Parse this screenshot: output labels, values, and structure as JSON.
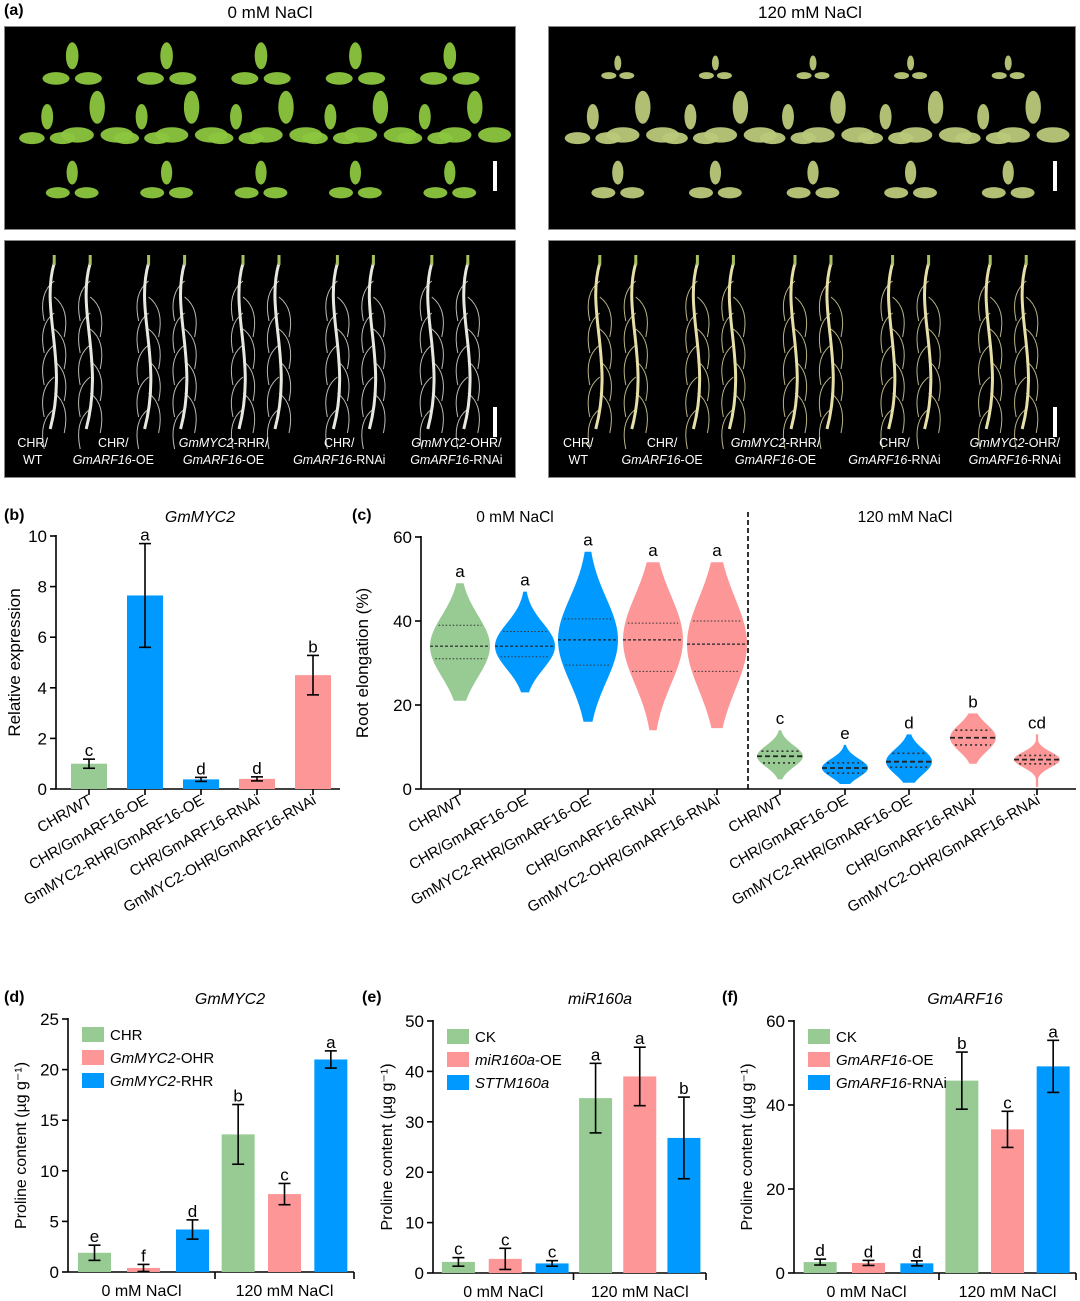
{
  "panel_a": {
    "label": "(a)",
    "conditions": [
      "0 mM NaCl",
      "120 mM NaCl"
    ],
    "genotypes": [
      {
        "line1": "CHR/",
        "line2_it": "",
        "line2": "WT"
      },
      {
        "line1": "CHR/",
        "line2_it": "GmARF16",
        "line2": "-OE"
      },
      {
        "line1_it": "GmMYC2",
        "line1": "-RHR/",
        "line2_it": "GmARF16",
        "line2": "-OE"
      },
      {
        "line1": "CHR/",
        "line2_it": "GmARF16",
        "line2": "-RNAi"
      },
      {
        "line1_it": "GmMYC2",
        "line1": "-OHR/",
        "line2_it": "GmARF16",
        "line2": "-RNAi"
      }
    ],
    "rows": [
      "leaves",
      "roots"
    ]
  },
  "colors": {
    "green": "#97cb93",
    "blue": "#0099ff",
    "pink": "#fd9696"
  },
  "chart_data": [
    {
      "id": "b",
      "type": "bar",
      "label": "(b)",
      "title": "GmMYC2",
      "ylabel": "Relative expression",
      "ylim": [
        0,
        10
      ],
      "yticks": [
        0,
        2,
        4,
        6,
        8,
        10
      ],
      "categories": [
        "CHR/WT",
        "CHR/GmARF16-OE",
        "GmMYC2-RHR/GmARF16-OE",
        "CHR/GmARF16-RNAi",
        "GmMYC2-OHR/GmARF16-RNAi"
      ],
      "values": [
        1.0,
        7.65,
        0.38,
        0.4,
        4.5
      ],
      "errors": [
        0.18,
        2.05,
        0.08,
        0.08,
        0.78
      ],
      "letters": [
        "c",
        "a",
        "d",
        "d",
        "b"
      ],
      "bar_colors": [
        "green",
        "blue",
        "blue",
        "pink",
        "pink"
      ]
    },
    {
      "id": "c",
      "type": "violin",
      "label": "(c)",
      "ylabel": "Root elongation (%)",
      "ylim": [
        0,
        60
      ],
      "yticks": [
        0,
        20,
        40,
        60
      ],
      "groups": [
        "0 mM NaCl",
        "120 mM NaCl"
      ],
      "categories": [
        "CHR/WT",
        "CHR/GmARF16-OE",
        "GmMYC2-RHR/GmARF16-OE",
        "CHR/GmARF16-RNAi",
        "GmMYC2-OHR/GmARF16-RNAi"
      ],
      "series": [
        {
          "name": "0 mM NaCl",
          "median": [
            34,
            34,
            35.5,
            35.5,
            34.5
          ],
          "q1": [
            31,
            31.5,
            29.5,
            28,
            28
          ],
          "q3": [
            39,
            37.5,
            40.5,
            39.5,
            40
          ],
          "min": [
            21,
            23,
            16,
            14,
            14.5
          ],
          "max": [
            49,
            47,
            56.5,
            54,
            54
          ],
          "letters": [
            "a",
            "a",
            "a",
            "a",
            "a"
          ]
        },
        {
          "name": "120 mM NaCl",
          "median": [
            7.8,
            5.0,
            6.5,
            12.2,
            7.0
          ],
          "q1": [
            6.2,
            3.8,
            5.2,
            10.5,
            6.0
          ],
          "q3": [
            9.0,
            6.2,
            8.5,
            14.0,
            8.0
          ],
          "min": [
            2.3,
            1.2,
            1.5,
            6.0,
            0.5
          ],
          "max": [
            14,
            10.5,
            13,
            18,
            13
          ],
          "letters": [
            "c",
            "e",
            "d",
            "b",
            "cd"
          ]
        }
      ],
      "violin_colors": [
        "green",
        "blue",
        "blue",
        "pink",
        "pink"
      ]
    },
    {
      "id": "d",
      "type": "bar",
      "label": "(d)",
      "title": "GmMYC2",
      "ylabel": "Proline content (µg g⁻¹)",
      "ylim": [
        0,
        25
      ],
      "yticks": [
        0,
        5,
        10,
        15,
        20,
        25
      ],
      "categories": [
        "0 mM NaCl",
        "120 mM NaCl"
      ],
      "series": [
        {
          "name": "CHR",
          "name_it": "",
          "name_rest": "CHR",
          "color": "green",
          "values": [
            1.9,
            13.6
          ],
          "errors": [
            0.75,
            2.95
          ],
          "letters": [
            "e",
            "b"
          ]
        },
        {
          "name": "GmMYC2-OHR",
          "name_it": "GmMYC2",
          "name_rest": "-OHR",
          "color": "pink",
          "values": [
            0.4,
            7.7
          ],
          "errors": [
            0.35,
            1.05
          ],
          "letters": [
            "f",
            "c"
          ]
        },
        {
          "name": "GmMYC2-RHR",
          "name_it": "GmMYC2",
          "name_rest": "-RHR",
          "color": "blue",
          "values": [
            4.2,
            21.0
          ],
          "errors": [
            0.95,
            0.85
          ],
          "letters": [
            "d",
            "a"
          ]
        }
      ]
    },
    {
      "id": "e",
      "type": "bar",
      "label": "(e)",
      "title": "miR160a",
      "ylabel": "Proline content (µg g⁻¹)",
      "ylim": [
        0,
        50
      ],
      "yticks": [
        0,
        10,
        20,
        30,
        40,
        50
      ],
      "categories": [
        "0 mM NaCl",
        "120 mM NaCl"
      ],
      "series": [
        {
          "name": "CK",
          "name_it": "",
          "name_rest": "CK",
          "color": "green",
          "values": [
            2.2,
            34.7
          ],
          "errors": [
            0.85,
            6.9
          ],
          "letters": [
            "c",
            "a"
          ]
        },
        {
          "name": "miR160a-OE",
          "name_it": "miR160a",
          "name_rest": "-OE",
          "color": "pink",
          "values": [
            2.8,
            39.0
          ],
          "errors": [
            2.1,
            5.8
          ],
          "letters": [
            "c",
            "a"
          ]
        },
        {
          "name": "STTM160a",
          "name_it": "STTM160a",
          "name_rest": "",
          "color": "blue",
          "values": [
            1.9,
            26.8
          ],
          "errors": [
            0.55,
            8.1
          ],
          "letters": [
            "c",
            "b"
          ]
        }
      ]
    },
    {
      "id": "f",
      "type": "bar",
      "label": "(f)",
      "title": "GmARF16",
      "ylabel": "Proline content (µg g⁻¹)",
      "ylim": [
        0,
        60
      ],
      "yticks": [
        0,
        20,
        40,
        60
      ],
      "categories": [
        "0 mM NaCl",
        "120 mM NaCl"
      ],
      "series": [
        {
          "name": "CK",
          "name_it": "",
          "name_rest": "CK",
          "color": "green",
          "values": [
            2.6,
            45.8
          ],
          "errors": [
            0.7,
            6.8
          ],
          "letters": [
            "d",
            "b"
          ]
        },
        {
          "name": "GmARF16-OE",
          "name_it": "GmARF16",
          "name_rest": "-OE",
          "color": "pink",
          "values": [
            2.4,
            34.2
          ],
          "errors": [
            0.6,
            4.3
          ],
          "letters": [
            "d",
            "c"
          ]
        },
        {
          "name": "GmARF16-RNAi",
          "name_it": "GmARF16",
          "name_rest": "-RNAi",
          "color": "blue",
          "values": [
            2.3,
            49.2
          ],
          "errors": [
            0.6,
            6.2
          ],
          "letters": [
            "d",
            "a"
          ]
        }
      ]
    }
  ]
}
